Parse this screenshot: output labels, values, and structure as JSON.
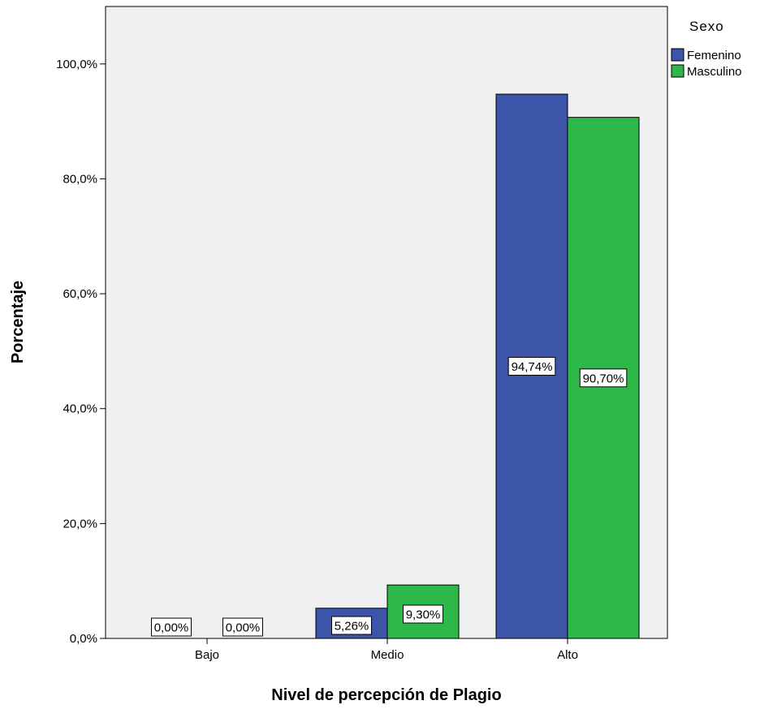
{
  "chart_data": {
    "type": "bar",
    "title": "",
    "xlabel": "Nivel de percepción de Plagio",
    "ylabel": "Porcentaje",
    "categories": [
      "Bajo",
      "Medio",
      "Alto"
    ],
    "ylim": [
      0,
      110
    ],
    "yticks": [
      0,
      20,
      40,
      60,
      80,
      100
    ],
    "ytick_labels": [
      "0,0%",
      "20,0%",
      "40,0%",
      "60,0%",
      "80,0%",
      "100,0%"
    ],
    "legend_title": "Sexo",
    "legend_position": "right",
    "series": [
      {
        "name": "Femenino",
        "color": "#3d55a8",
        "values": [
          0.0,
          5.26,
          94.74
        ],
        "labels": [
          "0,00%",
          "5,26%",
          "94,74%"
        ]
      },
      {
        "name": "Masculino",
        "color": "#2eb84a",
        "values": [
          0.0,
          9.3,
          90.7
        ],
        "labels": [
          "0,00%",
          "9,30%",
          "90,70%"
        ]
      }
    ],
    "plot_background": "#f0f0f0",
    "grid": false
  }
}
